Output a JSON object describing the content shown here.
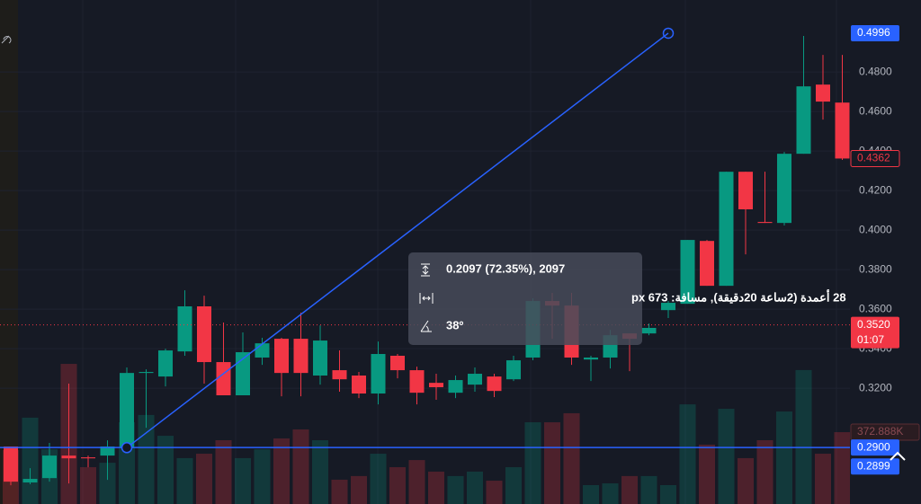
{
  "chart_data": {
    "type": "candlestick",
    "up_color": "#089981",
    "down_color": "#f23645",
    "grid": true,
    "ylim": [
      0.2614,
      0.5164
    ],
    "yticks": [
      {
        "value": 0.32,
        "label": "0.3200"
      },
      {
        "value": 0.34,
        "label": "0.3400"
      },
      {
        "value": 0.36,
        "label": "0.3600"
      },
      {
        "value": 0.38,
        "label": "0.3800"
      },
      {
        "value": 0.4,
        "label": "0.4000"
      },
      {
        "value": 0.42,
        "label": "0.4200"
      },
      {
        "value": 0.44,
        "label": "0.4400"
      },
      {
        "value": 0.46,
        "label": "0.4600"
      },
      {
        "value": 0.48,
        "label": "0.4800"
      }
    ],
    "candles": {
      "open": [
        0.2905,
        0.2723,
        0.2745,
        0.2859,
        0.285,
        0.2859,
        0.29,
        0.3277,
        0.3259,
        0.3386,
        0.3614,
        0.3332,
        0.3164,
        0.3355,
        0.345,
        0.345,
        0.3264,
        0.3291,
        0.3264,
        0.3173,
        0.3364,
        0.3291,
        0.3227,
        0.3177,
        0.3218,
        0.3259,
        0.3245,
        0.3355,
        0.3641,
        0.3618,
        0.3345,
        0.3355,
        0.3477,
        0.3477,
        0.3595,
        0.3627,
        0.3945,
        0.3718,
        0.4295,
        0.4041,
        0.4036,
        0.4386,
        0.4736,
        0.4645
      ],
      "high": [
        0.2905,
        0.2795,
        0.2923,
        0.3223,
        0.2859,
        0.2936,
        0.3305,
        0.3295,
        0.34,
        0.3695,
        0.3668,
        0.3532,
        0.3482,
        0.3455,
        0.3455,
        0.3582,
        0.3518,
        0.3391,
        0.3282,
        0.3436,
        0.3373,
        0.3309,
        0.3273,
        0.3264,
        0.3305,
        0.3273,
        0.3364,
        0.3655,
        0.3682,
        0.3682,
        0.3364,
        0.3495,
        0.3477,
        0.3527,
        0.3641,
        0.395,
        0.395,
        0.4295,
        0.4295,
        0.4295,
        0.4395,
        0.4982,
        0.4886,
        0.4886
      ],
      "low": [
        0.2709,
        0.2714,
        0.2727,
        0.2718,
        0.28,
        0.2736,
        0.2891,
        0.3,
        0.3209,
        0.3364,
        0.3223,
        0.3164,
        0.3164,
        0.3318,
        0.3159,
        0.3159,
        0.3218,
        0.3182,
        0.315,
        0.3118,
        0.325,
        0.3118,
        0.3141,
        0.315,
        0.3182,
        0.3155,
        0.3236,
        0.3341,
        0.345,
        0.3318,
        0.3236,
        0.33,
        0.3286,
        0.3468,
        0.3555,
        0.3627,
        0.3718,
        0.3718,
        0.3877,
        0.4036,
        0.4023,
        0.4386,
        0.4559,
        0.4355
      ],
      "close": [
        0.2727,
        0.2741,
        0.2859,
        0.2845,
        0.2845,
        0.2905,
        0.3277,
        0.3282,
        0.3391,
        0.3614,
        0.3332,
        0.3164,
        0.3382,
        0.3427,
        0.3277,
        0.3277,
        0.3441,
        0.3245,
        0.3173,
        0.3373,
        0.3291,
        0.3177,
        0.3205,
        0.3241,
        0.3273,
        0.3186,
        0.3341,
        0.3641,
        0.3618,
        0.3355,
        0.3355,
        0.3468,
        0.345,
        0.3505,
        0.3632,
        0.395,
        0.3718,
        0.4295,
        0.4105,
        0.4036,
        0.4386,
        0.4727,
        0.465,
        0.4362
      ]
    },
    "volume": {
      "ylim": [
        0,
        2615
      ],
      "values": [
        280,
        448,
        284,
        727,
        191,
        214,
        424,
        462,
        354,
        238,
        261,
        331,
        238,
        284,
        340,
        387,
        331,
        126,
        145,
        261,
        191,
        228,
        168,
        145,
        168,
        121,
        191,
        424,
        424,
        471,
        98,
        107,
        145,
        145,
        98,
        517,
        308,
        494,
        238,
        331,
        480,
        695,
        261,
        372.888
      ],
      "last_label": "372.888K"
    },
    "last_close_label": {
      "value": 0.4362,
      "label": "0.4362"
    },
    "price_line": {
      "value": 0.352,
      "label": "0.3520",
      "countdown": "01:07"
    },
    "horizontal_line": {
      "value": 0.29,
      "label": "0.2900"
    },
    "trend_line": {
      "x": [
        6,
        34
      ],
      "values": [
        0.2899,
        0.4996
      ],
      "labels": [
        "0.2899",
        "0.4996"
      ]
    },
    "measure": {
      "price_range": "0.2097 (72.35%), 2097",
      "bars_range": "28 أعمدة (2ساعة 20دقيقة), مسافة: 673 px",
      "angle": "38º"
    }
  }
}
